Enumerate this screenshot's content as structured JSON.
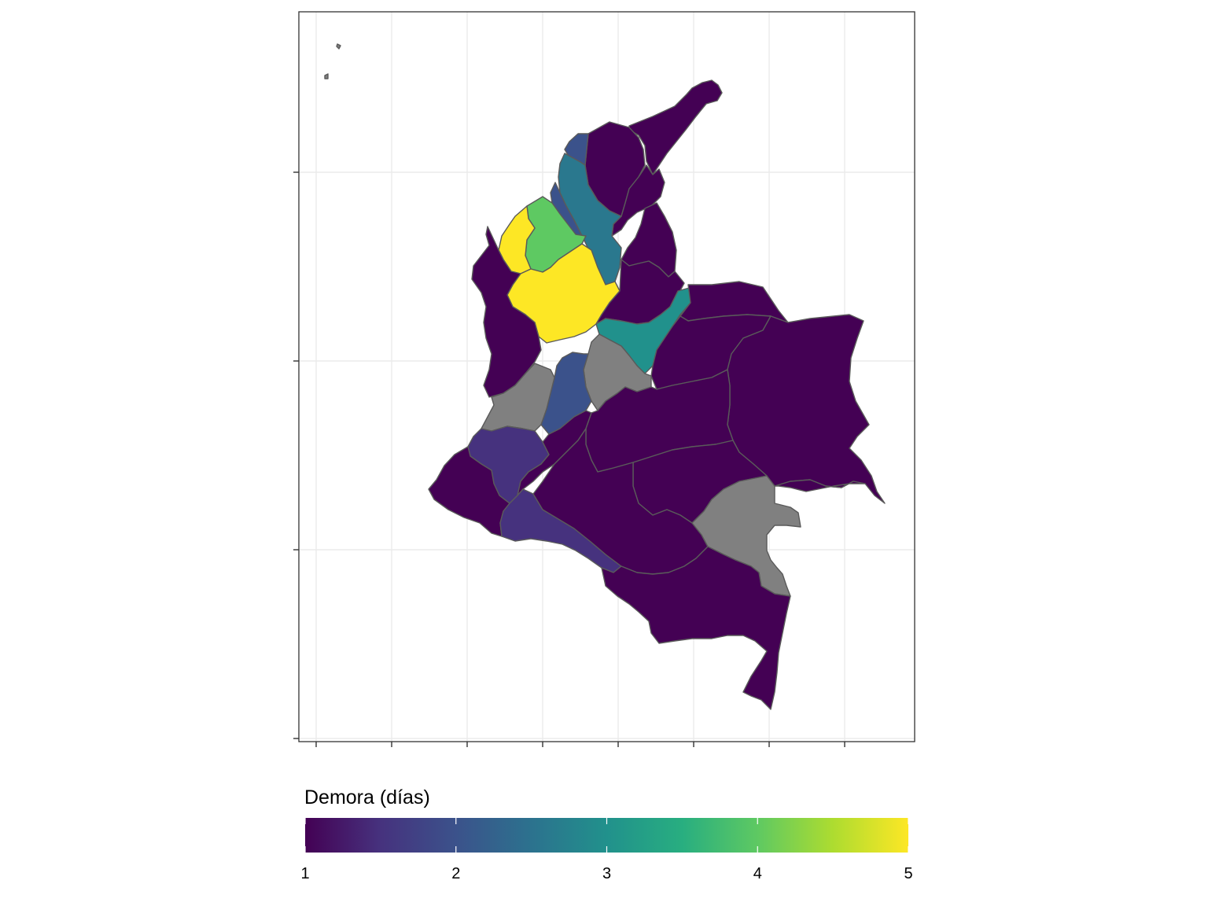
{
  "legend": {
    "title": "Demora (días)",
    "min": 1,
    "max": 5,
    "ticks": [
      1,
      2,
      3,
      4,
      5
    ],
    "tick_labels": [
      "1",
      "2",
      "3",
      "4",
      "5"
    ],
    "palette": [
      "#440154",
      "#3b528b",
      "#21918c",
      "#5ec962",
      "#fde725"
    ],
    "na_color": "#808080"
  },
  "map": {
    "panel_border": "#333333",
    "grid_color": "#ebebeb",
    "grid": true,
    "axis_labels_shown": false,
    "regions": [
      {
        "name": "guajira",
        "value": 1
      },
      {
        "name": "magdalena",
        "value": 1
      },
      {
        "name": "cesar",
        "value": 1
      },
      {
        "name": "atlantico",
        "value": 2
      },
      {
        "name": "bolivar",
        "value": 2.6
      },
      {
        "name": "sucre",
        "value": 2
      },
      {
        "name": "cordoba",
        "value": 4
      },
      {
        "name": "uraba",
        "value": 5
      },
      {
        "name": "antioquia",
        "value": 5
      },
      {
        "name": "choco",
        "value": 1
      },
      {
        "name": "norte-santander",
        "value": 1
      },
      {
        "name": "santander",
        "value": 1
      },
      {
        "name": "boyaca",
        "value": 3
      },
      {
        "name": "arauca",
        "value": 1
      },
      {
        "name": "casanare",
        "value": 1
      },
      {
        "name": "vichada",
        "value": 1
      },
      {
        "name": "cundinamarca",
        "value": null
      },
      {
        "name": "tolima",
        "value": 2
      },
      {
        "name": "valle",
        "value": null
      },
      {
        "name": "cauca",
        "value": 1.5
      },
      {
        "name": "narino",
        "value": 1
      },
      {
        "name": "huila",
        "value": 1
      },
      {
        "name": "putumayo",
        "value": 1.5
      },
      {
        "name": "meta",
        "value": 1
      },
      {
        "name": "guaviare",
        "value": 1
      },
      {
        "name": "guainia",
        "value": 1
      },
      {
        "name": "caqueta",
        "value": 1
      },
      {
        "name": "vaupes",
        "value": null
      },
      {
        "name": "amazonas",
        "value": 1
      },
      {
        "name": "san-andres",
        "value": null
      }
    ]
  }
}
